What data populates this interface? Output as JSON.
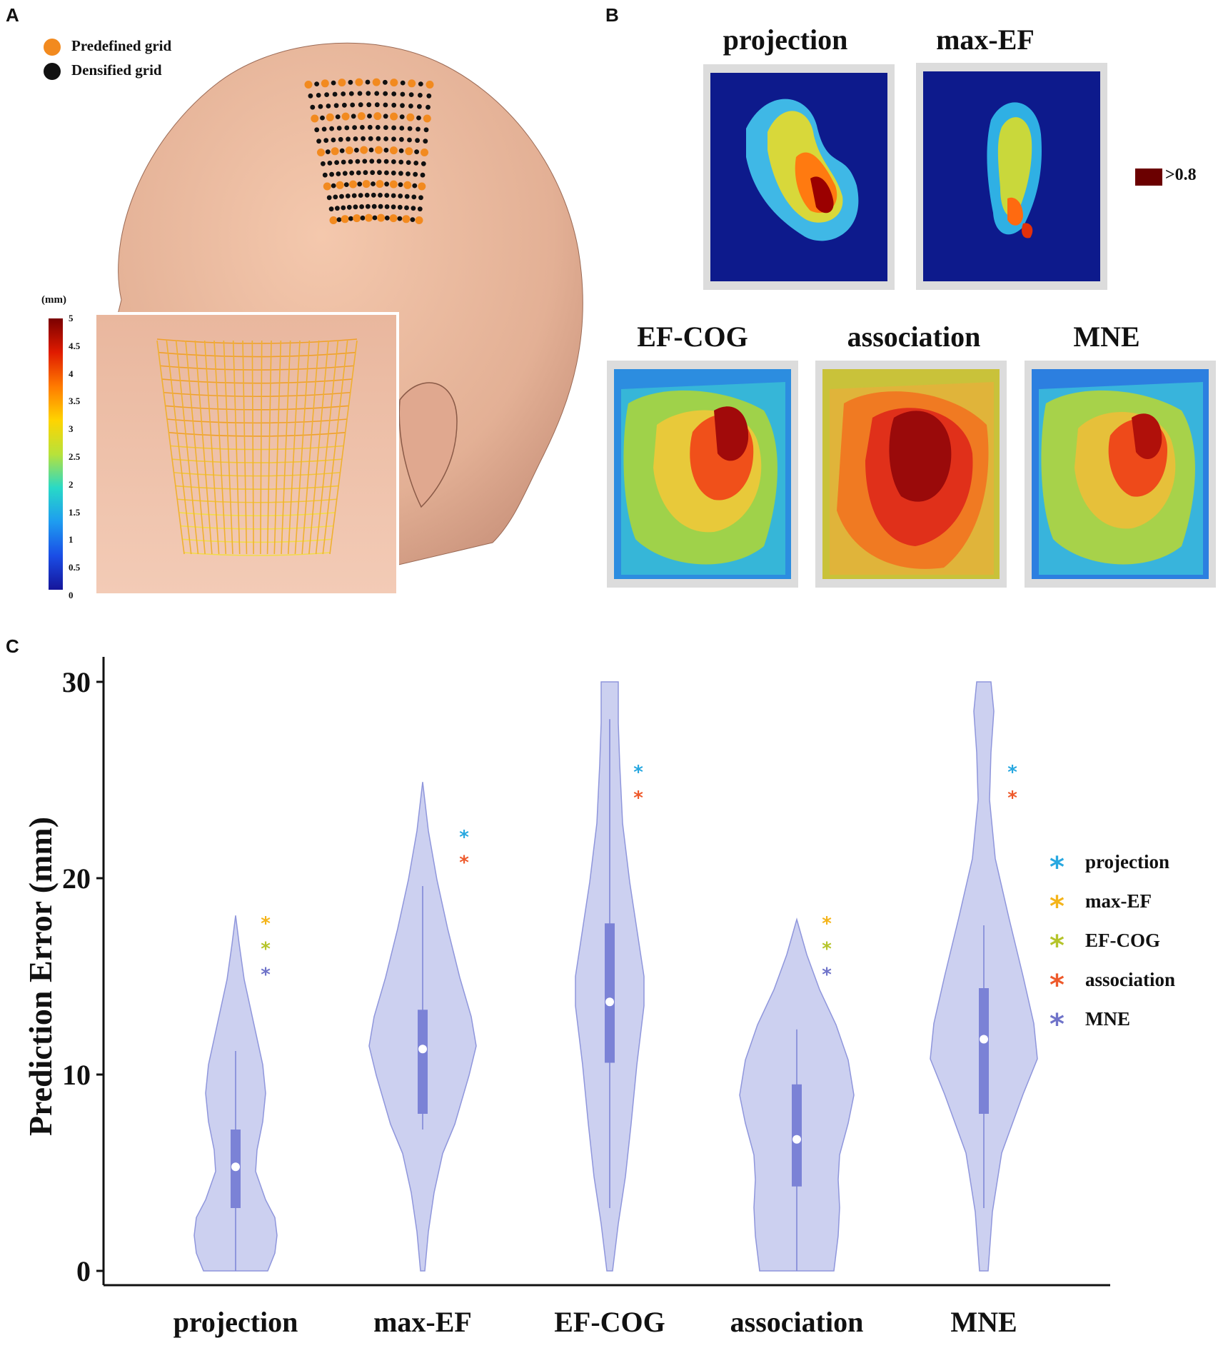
{
  "panels": {
    "a": {
      "letter": "A",
      "legend": [
        {
          "label": "Predefined grid",
          "color": "#f28a1f"
        },
        {
          "label": "Densified grid",
          "color": "#111111"
        }
      ],
      "colorbar": {
        "unit": "(mm)",
        "ticks": [
          "5",
          "4.5",
          "4",
          "3.5",
          "3",
          "2.5",
          "2",
          "1.5",
          "1",
          "0.5",
          "0"
        ]
      }
    },
    "b": {
      "letter": "B",
      "maps": [
        {
          "title": "projection"
        },
        {
          "title": "max-EF"
        },
        {
          "title": "EF-COG"
        },
        {
          "title": "association"
        },
        {
          "title": "MNE"
        }
      ],
      "threshold_label": ">0.8",
      "threshold_color": "#6b0000"
    },
    "c": {
      "letter": "C"
    }
  },
  "chart_data": {
    "type": "violin",
    "ylabel": "Prediction Error (mm)",
    "xlabel": "",
    "ylim": [
      0,
      30
    ],
    "yticks": [
      "0",
      "10",
      "20",
      "30"
    ],
    "categories": [
      "projection",
      "max-EF",
      "EF-COG",
      "association",
      "MNE"
    ],
    "series": [
      {
        "category": "projection",
        "median": 5.3,
        "q1": 3.2,
        "q3": 7.2,
        "whisker_low": 0,
        "whisker_high": 11.2,
        "max": 18.1
      },
      {
        "category": "max-EF",
        "median": 11.3,
        "q1": 8.0,
        "q3": 13.3,
        "whisker_low": 7.2,
        "whisker_high": 19.6,
        "max": 24.9
      },
      {
        "category": "EF-COG",
        "median": 13.7,
        "q1": 10.6,
        "q3": 17.7,
        "whisker_low": 3.2,
        "whisker_high": 28.1,
        "max": 30
      },
      {
        "category": "association",
        "median": 6.7,
        "q1": 4.3,
        "q3": 9.5,
        "whisker_low": 0,
        "whisker_high": 12.3,
        "max": 17.9
      },
      {
        "category": "MNE",
        "median": 11.8,
        "q1": 8.0,
        "q3": 14.4,
        "whisker_low": 3.2,
        "whisker_high": 17.6,
        "max": 30
      }
    ],
    "significance": [
      {
        "category": "projection",
        "marks": [
          "max-EF",
          "EF-COG",
          "MNE"
        ]
      },
      {
        "category": "max-EF",
        "marks": [
          "projection",
          "association"
        ]
      },
      {
        "category": "EF-COG",
        "marks": [
          "projection",
          "association"
        ]
      },
      {
        "category": "association",
        "marks": [
          "max-EF",
          "EF-COG",
          "MNE"
        ]
      },
      {
        "category": "MNE",
        "marks": [
          "projection",
          "association"
        ]
      }
    ],
    "legend": [
      {
        "name": "projection",
        "color": "#29a8e0"
      },
      {
        "name": "max-EF",
        "color": "#f4b41a"
      },
      {
        "name": "EF-COG",
        "color": "#b5c42b"
      },
      {
        "name": "association",
        "color": "#ee5a2c"
      },
      {
        "name": "MNE",
        "color": "#6f73c9"
      }
    ],
    "legend_position": "right",
    "violin_fill": "#c7cbee",
    "violin_stroke": "#8f96dc",
    "box_fill": "#7b82d6"
  }
}
